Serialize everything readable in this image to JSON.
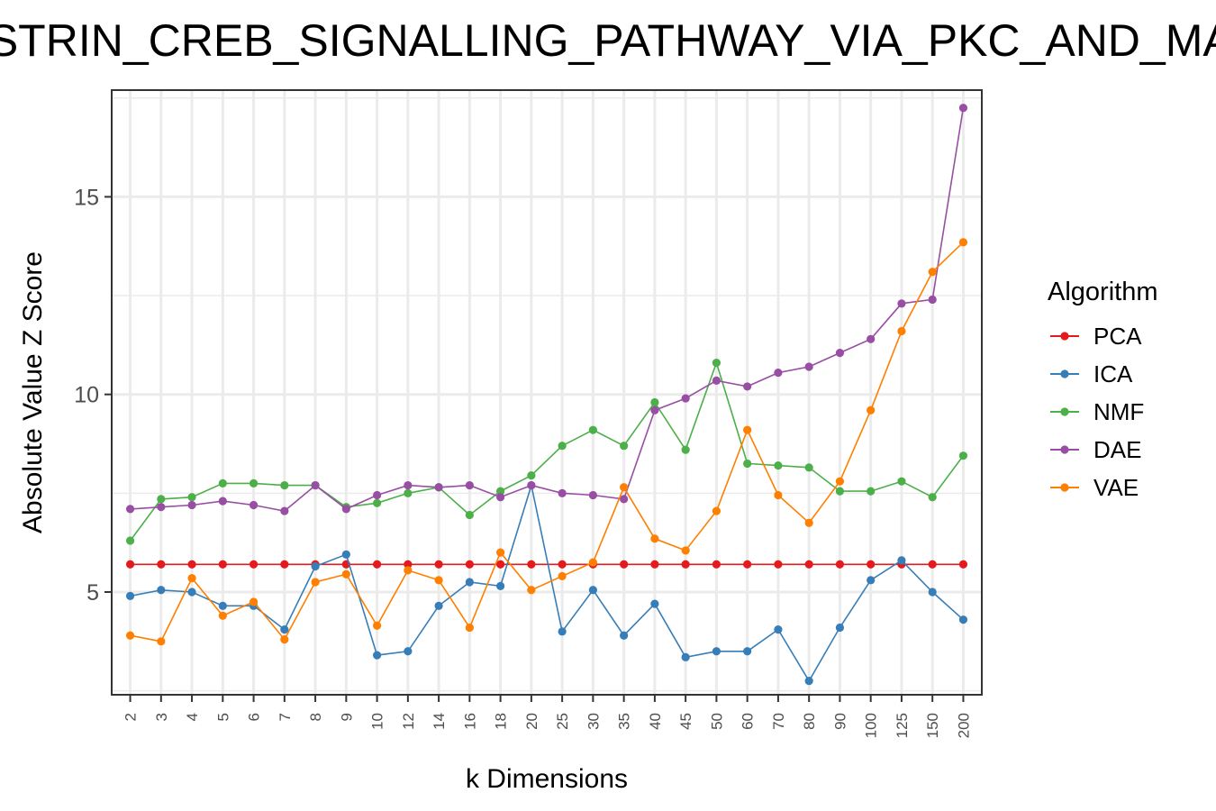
{
  "chart_data": {
    "type": "line",
    "title": "GASTRIN_CREB_SIGNALLING_PATHWAY_VIA_PKC_AND_MAPK",
    "xlabel": "k Dimensions",
    "ylabel": "Absolute Value Z Score",
    "categories": [
      "2",
      "3",
      "4",
      "5",
      "6",
      "7",
      "8",
      "9",
      "10",
      "12",
      "14",
      "16",
      "18",
      "20",
      "25",
      "30",
      "35",
      "40",
      "45",
      "50",
      "60",
      "70",
      "80",
      "90",
      "100",
      "125",
      "150",
      "200"
    ],
    "y_ticks": [
      5,
      10,
      15
    ],
    "ylim": [
      2.4,
      17.7
    ],
    "grid": true,
    "legend": {
      "title": "Algorithm",
      "position": "right"
    },
    "series": [
      {
        "name": "PCA",
        "color": "#e41a1c",
        "values": [
          5.7,
          5.7,
          5.7,
          5.7,
          5.7,
          5.7,
          5.7,
          5.7,
          5.7,
          5.7,
          5.7,
          5.7,
          5.7,
          5.7,
          5.7,
          5.7,
          5.7,
          5.7,
          5.7,
          5.7,
          5.7,
          5.7,
          5.7,
          5.7,
          5.7,
          5.7,
          5.7,
          5.7
        ]
      },
      {
        "name": "ICA",
        "color": "#377eb8",
        "values": [
          4.9,
          5.05,
          5.0,
          4.65,
          4.65,
          4.05,
          5.65,
          5.95,
          3.4,
          3.5,
          4.65,
          5.25,
          5.15,
          7.7,
          4.0,
          5.05,
          3.9,
          4.7,
          3.35,
          3.5,
          3.5,
          4.05,
          2.75,
          4.1,
          5.3,
          5.8,
          5.0,
          4.3
        ]
      },
      {
        "name": "NMF",
        "color": "#4daf4a",
        "values": [
          6.3,
          7.35,
          7.4,
          7.75,
          7.75,
          7.7,
          7.7,
          7.15,
          7.25,
          7.5,
          7.65,
          6.95,
          7.55,
          7.95,
          8.7,
          9.1,
          8.7,
          9.8,
          8.6,
          10.8,
          8.25,
          8.2,
          8.15,
          7.55,
          7.55,
          7.8,
          7.4,
          8.45
        ]
      },
      {
        "name": "DAE",
        "color": "#984ea3",
        "values": [
          7.1,
          7.15,
          7.2,
          7.3,
          7.2,
          7.05,
          7.7,
          7.1,
          7.45,
          7.7,
          7.65,
          7.7,
          7.4,
          7.7,
          7.5,
          7.45,
          7.35,
          9.6,
          9.9,
          10.35,
          10.2,
          10.55,
          10.7,
          11.05,
          11.4,
          12.3,
          12.4,
          17.25
        ]
      },
      {
        "name": "VAE",
        "color": "#ff7f00",
        "values": [
          3.9,
          3.75,
          5.35,
          4.4,
          4.75,
          3.8,
          5.25,
          5.45,
          4.15,
          5.55,
          5.3,
          4.1,
          6.0,
          5.05,
          5.4,
          5.75,
          7.65,
          6.35,
          6.05,
          7.05,
          9.1,
          7.45,
          6.75,
          7.8,
          9.6,
          11.6,
          13.1,
          13.85
        ]
      }
    ]
  }
}
